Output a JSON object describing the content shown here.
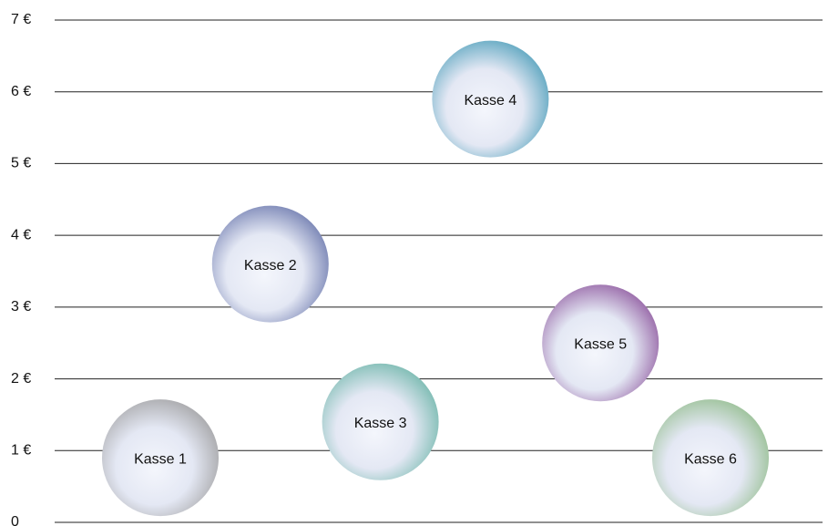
{
  "chart_data": {
    "type": "bubble",
    "categories": [
      "Kasse 1",
      "Kasse 2",
      "Kasse 3",
      "Kasse 4",
      "Kasse 5",
      "Kasse 6"
    ],
    "values": [
      0.9,
      3.6,
      1.4,
      5.9,
      2.5,
      0.9
    ],
    "colors": [
      "#a6a6a8",
      "#7480b2",
      "#78bab0",
      "#5aa5bf",
      "#9563a5",
      "#99c095"
    ],
    "ylim": [
      0,
      7
    ],
    "yticks": [
      0,
      {
        "value": 1,
        "label": "1 €"
      },
      {
        "value": 2,
        "label": "2 €"
      },
      {
        "value": 3,
        "label": "3 €"
      },
      {
        "value": 4,
        "label": "4 €"
      },
      {
        "value": 5,
        "label": "5 €"
      },
      {
        "value": 6,
        "label": "6 €"
      },
      {
        "value": 7,
        "label": "7 €"
      }
    ],
    "grid": true
  }
}
